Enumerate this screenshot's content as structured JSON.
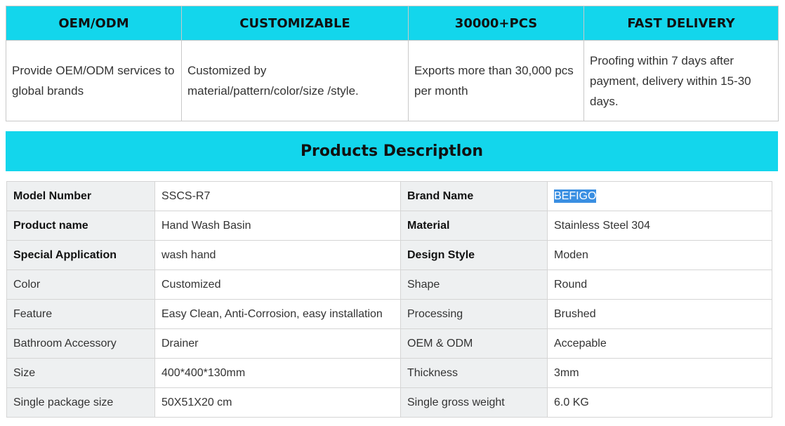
{
  "features": {
    "headers": [
      "OEM/ODM",
      "CUSTOMIZABLE",
      "30000+PCS",
      "FAST DELIVERY"
    ],
    "descriptions": [
      "Provide OEM/ODM services to global brands",
      "Customized by material/pattern/color/size /style.",
      "Exports more than 30,000 pcs per month",
      "Proofing within 7 days after payment, delivery within 15-30 days."
    ]
  },
  "section_title": "Products Descriptlon",
  "specs": {
    "rows": [
      {
        "k1": "Model Number",
        "v1": "SSCS-R7",
        "k2": "Brand Name",
        "v2": "BEFIGO"
      },
      {
        "k1": "Product name",
        "v1": "Hand Wash Basin",
        "k2": "Material",
        "v2": "Stainless Steel 304"
      },
      {
        "k1": "Special Application",
        "v1": "wash hand",
        "k2": "Design Style",
        "v2": "Moden"
      },
      {
        "k1": "Color",
        "v1": "Customized",
        "k2": "Shape",
        "v2": "Round"
      },
      {
        "k1": "Feature",
        "v1": "Easy Clean, Anti-Corrosion, easy installation",
        "k2": "Processing",
        "v2": "Brushed"
      },
      {
        "k1": "Bathroom Accessory",
        "v1": "Drainer",
        "k2": "OEM & ODM",
        "v2": "Accepable"
      },
      {
        "k1": "Size",
        "v1": "400*400*130mm",
        "k2": "Thickness",
        "v2": "3mm"
      },
      {
        "k1": "Single package size",
        "v1": "50X51X20 cm",
        "k2": "Single gross weight",
        "v2": "6.0 KG"
      }
    ]
  },
  "colors": {
    "accent": "#13d6ec",
    "selection_highlight": "#3a8fe2",
    "key_cell_bg": "#eef0f1"
  }
}
